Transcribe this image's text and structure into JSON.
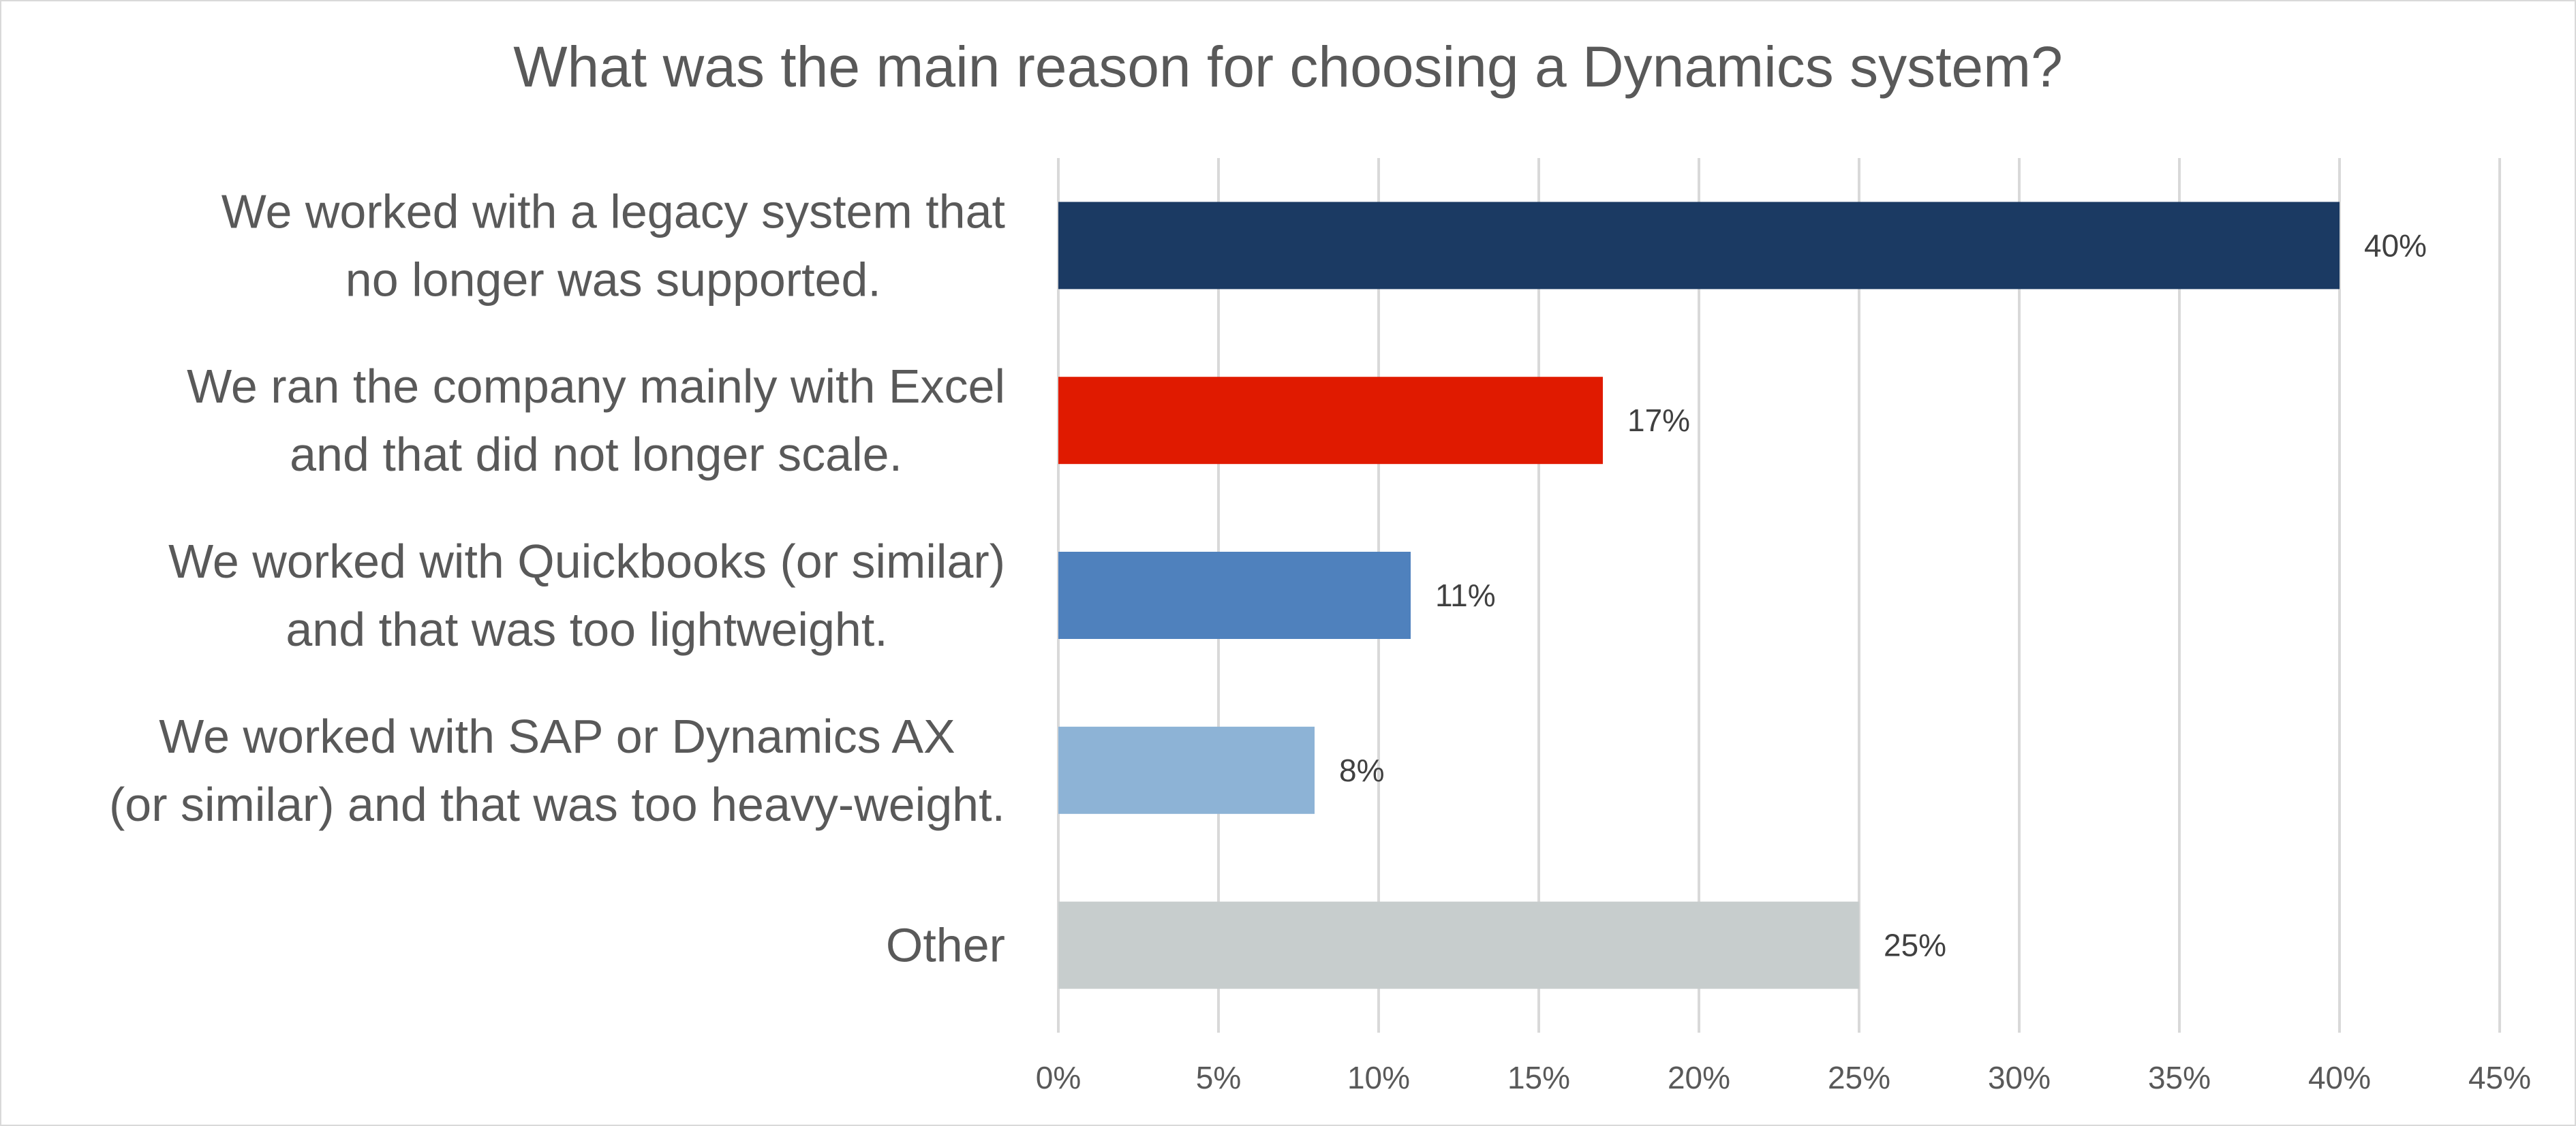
{
  "chart_data": {
    "type": "bar",
    "orientation": "horizontal",
    "title": "What was the main reason for choosing a Dynamics system?",
    "xlabel": "",
    "ylabel": "",
    "categories": [
      [
        "We worked with a legacy system that",
        "no longer was supported."
      ],
      [
        "We ran the company mainly with Excel",
        "and that did not longer scale."
      ],
      [
        "We worked with Quickbooks (or similar)",
        "and that was too lightweight."
      ],
      [
        "We worked with SAP or Dynamics AX",
        "(or similar) and that was too heavy-weight."
      ],
      [
        "Other"
      ]
    ],
    "values": [
      40,
      17,
      11,
      8,
      25
    ],
    "value_labels": [
      "40%",
      "17%",
      "11%",
      "8%",
      "25%"
    ],
    "bar_colors": [
      "#1b3a63",
      "#e01a00",
      "#4f81bd",
      "#8db3d6",
      "#c7cdcd"
    ],
    "x_ticks": [
      "0%",
      "5%",
      "10%",
      "15%",
      "20%",
      "25%",
      "30%",
      "35%",
      "40%",
      "45%"
    ],
    "xlim": [
      0,
      45
    ],
    "grid": true,
    "legend": "none"
  }
}
